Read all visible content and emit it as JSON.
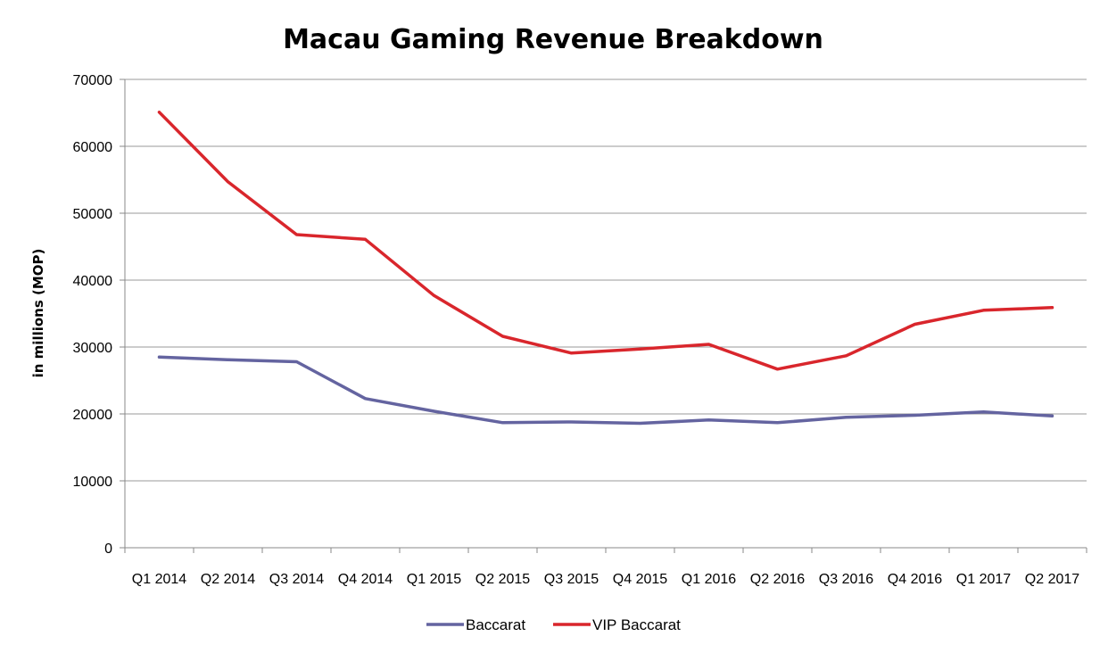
{
  "chart_data": {
    "type": "line",
    "title": "Macau Gaming Revenue Breakdown",
    "xlabel": "",
    "ylabel": "in millions (MOP)",
    "ylim": [
      0,
      70000
    ],
    "yticks": [
      0,
      10000,
      20000,
      30000,
      40000,
      50000,
      60000,
      70000
    ],
    "grid": true,
    "legend_position": "bottom",
    "categories": [
      "Q1 2014",
      "Q2 2014",
      "Q3 2014",
      "Q4 2014",
      "Q1 2015",
      "Q2 2015",
      "Q3 2015",
      "Q4 2015",
      "Q1 2016",
      "Q2 2016",
      "Q3 2016",
      "Q4 2016",
      "Q1 2017",
      "Q2 2017"
    ],
    "series": [
      {
        "name": "Baccarat",
        "color": "#6464a0",
        "values": [
          28500,
          28100,
          27800,
          22300,
          20400,
          18700,
          18800,
          18600,
          19100,
          18700,
          19500,
          19800,
          20300,
          19700
        ]
      },
      {
        "name": "VIP Baccarat",
        "color": "#d9262c",
        "values": [
          65100,
          54700,
          46800,
          46100,
          37700,
          31600,
          29100,
          29700,
          30400,
          26700,
          28700,
          33400,
          35500,
          35900
        ]
      }
    ]
  }
}
